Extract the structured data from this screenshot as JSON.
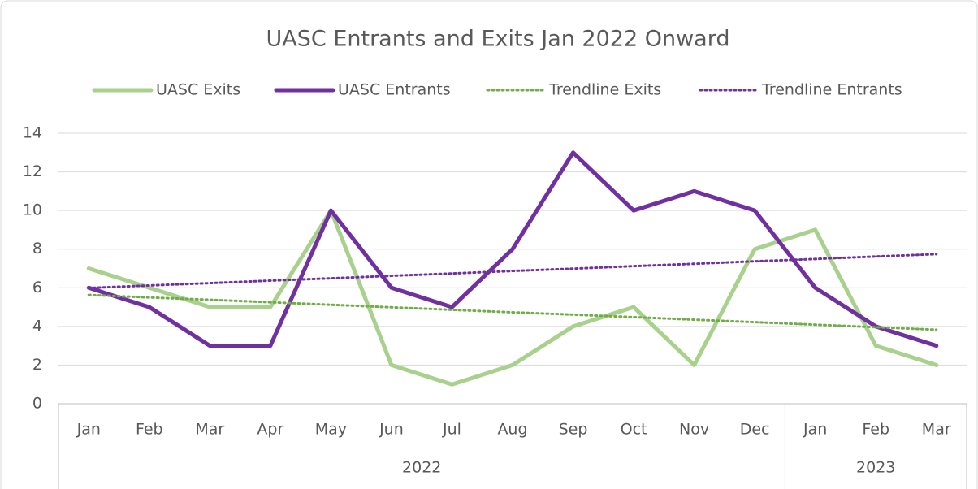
{
  "chart_data": {
    "type": "line",
    "title": "UASC Entrants and Exits Jan 2022 Onward",
    "categories": [
      "Jan",
      "Feb",
      "Mar",
      "Apr",
      "May",
      "Jun",
      "Jul",
      "Aug",
      "Sep",
      "Oct",
      "Nov",
      "Dec",
      "Jan",
      "Feb",
      "Mar"
    ],
    "groups": [
      {
        "label": "2022",
        "span": 12
      },
      {
        "label": "2023",
        "span": 3
      }
    ],
    "series": [
      {
        "name": "UASC Exits",
        "color": "#a9d18e",
        "style": "solid",
        "values": [
          7,
          6,
          5,
          5,
          10,
          2,
          1,
          2,
          4,
          5,
          2,
          8,
          9,
          3,
          2
        ]
      },
      {
        "name": "UASC Entrants",
        "color": "#7030a0",
        "style": "solid",
        "values": [
          6,
          5,
          3,
          3,
          10,
          6,
          5,
          8,
          13,
          10,
          11,
          10,
          6,
          4,
          3
        ]
      },
      {
        "name": "Trendline Exits",
        "color": "#70ad47",
        "style": "dotted",
        "values": [
          5.63,
          5.5,
          5.38,
          5.25,
          5.12,
          4.99,
          4.86,
          4.73,
          4.61,
          4.48,
          4.35,
          4.22,
          4.09,
          3.96,
          3.83
        ]
      },
      {
        "name": "Trendline Entrants",
        "color": "#7030a0",
        "style": "dotted",
        "values": [
          5.99,
          6.12,
          6.24,
          6.37,
          6.49,
          6.62,
          6.74,
          6.87,
          6.99,
          7.12,
          7.24,
          7.37,
          7.49,
          7.62,
          7.74
        ]
      }
    ],
    "ylim": [
      0,
      14
    ],
    "yticks": [
      0,
      2,
      4,
      6,
      8,
      10,
      12,
      14
    ],
    "grid": true,
    "legend": "top"
  }
}
